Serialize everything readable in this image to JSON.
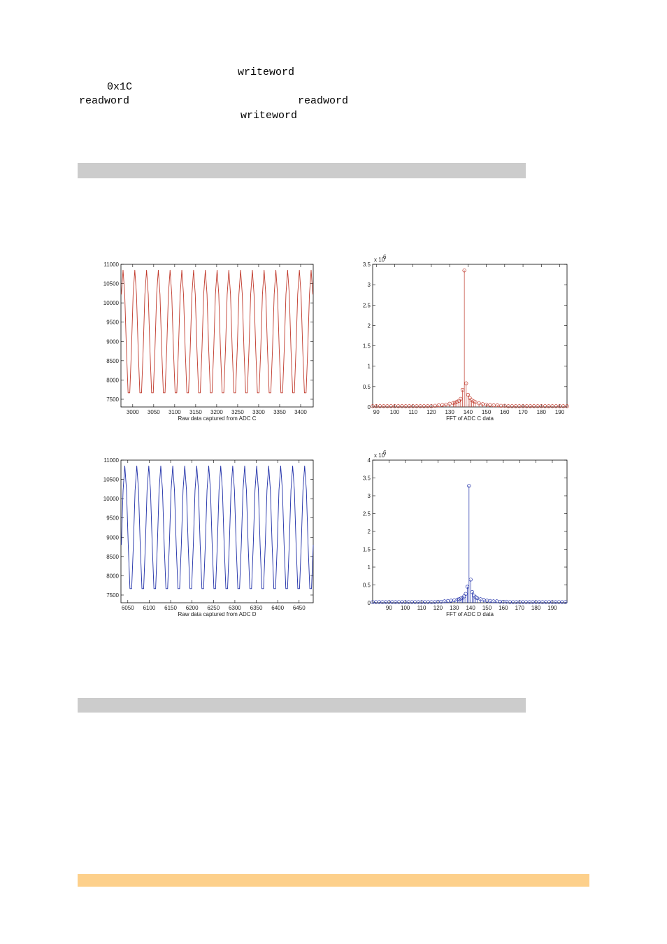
{
  "text": [
    "writeword",
    "0x1C",
    "readword",
    "readword",
    "writeword"
  ],
  "chart_data": [
    {
      "type": "line",
      "xlabel": "Raw data captured from ADC C",
      "color": "#c0392b",
      "xlim": [
        2972,
        3430
      ],
      "xticks": [
        3000,
        3050,
        3100,
        3150,
        3200,
        3250,
        3300,
        3350,
        3400
      ],
      "ylim": [
        7300,
        11000
      ],
      "yticks": [
        7500,
        8000,
        8500,
        9000,
        9500,
        10000,
        10500,
        11000
      ],
      "x": [
        2973,
        2977,
        2981,
        2985,
        2989,
        2993,
        2997,
        3001,
        3005,
        3009,
        3013,
        3017,
        3021,
        3025,
        3029,
        3033,
        3037,
        3041,
        3045,
        3049,
        3053,
        3057,
        3061,
        3065,
        3069,
        3073,
        3077,
        3081,
        3085,
        3089,
        3093,
        3097,
        3101,
        3105,
        3109,
        3113,
        3117,
        3121,
        3125,
        3129,
        3133,
        3137,
        3141,
        3145,
        3149,
        3153,
        3157,
        3161,
        3165,
        3169,
        3173,
        3177,
        3181,
        3185,
        3189,
        3193,
        3197,
        3201,
        3205,
        3209,
        3213,
        3217,
        3221,
        3225,
        3229,
        3233,
        3237,
        3241,
        3245,
        3249,
        3253,
        3257,
        3261,
        3265,
        3269,
        3273,
        3277,
        3281,
        3285,
        3289,
        3293,
        3297,
        3301,
        3305,
        3309,
        3313,
        3317,
        3321,
        3325,
        3329,
        3333,
        3337,
        3341,
        3345,
        3349,
        3353,
        3357,
        3361,
        3365,
        3369,
        3373,
        3377,
        3381,
        3385,
        3389,
        3393,
        3397,
        3401,
        3405,
        3409,
        3413,
        3417,
        3421,
        3425,
        3429
      ],
      "values": [
        10219,
        10850,
        10219,
        8802,
        7666,
        7666,
        8802,
        10219,
        10850,
        10219,
        8802,
        7666,
        7666,
        8802,
        10219,
        10850,
        10219,
        8802,
        7666,
        7666,
        8802,
        10219,
        10850,
        10219,
        8802,
        7666,
        7666,
        8802,
        10219,
        10850,
        10219,
        8802,
        7666,
        7666,
        8802,
        10219,
        10850,
        10219,
        8802,
        7666,
        7666,
        8802,
        10219,
        10850,
        10219,
        8802,
        7666,
        7666,
        8802,
        10219,
        10850,
        10219,
        8802,
        7666,
        7666,
        8802,
        10219,
        10850,
        10219,
        8802,
        7666,
        7666,
        8802,
        10219,
        10850,
        10219,
        8802,
        7666,
        7666,
        8802,
        10219,
        10850,
        10219,
        8802,
        7666,
        7666,
        8802,
        10219,
        10850,
        10219,
        8802,
        7666,
        7666,
        8802,
        10219,
        10850,
        10219,
        8802,
        7666,
        7666,
        8802,
        10219,
        10850,
        10219,
        8802,
        7666,
        7666,
        8802,
        10219,
        10850,
        10219,
        8802,
        7666,
        7666,
        8802,
        10219,
        10850,
        10219,
        8802,
        7666,
        7666,
        8802,
        10219,
        10850,
        10219
      ]
    },
    {
      "type": "stem",
      "xlabel": "FFT of ADC C data",
      "color": "#c0392b",
      "y_scale_label": "x 10",
      "y_scale_exponent": 6,
      "xlim": [
        88,
        194
      ],
      "xticks": [
        90,
        100,
        110,
        120,
        130,
        140,
        150,
        160,
        170,
        180,
        190
      ],
      "ylim": [
        0,
        3.5
      ],
      "yticks": [
        0,
        0.5,
        1,
        1.5,
        2,
        2.5,
        3,
        3.5
      ],
      "x": [
        88,
        90,
        92,
        94,
        96,
        98,
        100,
        102,
        104,
        106,
        108,
        110,
        112,
        114,
        116,
        118,
        120,
        122,
        124,
        126,
        128,
        130,
        132,
        133,
        134,
        135,
        136,
        137,
        138,
        139,
        140,
        141,
        142,
        143,
        144,
        146,
        148,
        150,
        152,
        154,
        156,
        158,
        160,
        162,
        164,
        166,
        168,
        170,
        172,
        174,
        176,
        178,
        180,
        182,
        184,
        186,
        188,
        190,
        192,
        194
      ],
      "values": [
        0.02,
        0.02,
        0.02,
        0.02,
        0.02,
        0.02,
        0.02,
        0.02,
        0.02,
        0.02,
        0.02,
        0.02,
        0.02,
        0.02,
        0.02,
        0.02,
        0.02,
        0.03,
        0.04,
        0.05,
        0.06,
        0.08,
        0.1,
        0.11,
        0.13,
        0.15,
        0.2,
        0.42,
        3.35,
        0.58,
        0.3,
        0.22,
        0.17,
        0.14,
        0.12,
        0.09,
        0.07,
        0.06,
        0.05,
        0.04,
        0.04,
        0.03,
        0.03,
        0.02,
        0.02,
        0.02,
        0.02,
        0.02,
        0.02,
        0.02,
        0.02,
        0.02,
        0.02,
        0.02,
        0.02,
        0.02,
        0.02,
        0.02,
        0.02,
        0.02
      ]
    },
    {
      "type": "line",
      "xlabel": "Raw data captured from ADC D",
      "color": "#1f2fa8",
      "xlim": [
        6034,
        6483
      ],
      "xticks": [
        6050,
        6100,
        6150,
        6200,
        6250,
        6300,
        6350,
        6400,
        6450
      ],
      "ylim": [
        7300,
        11000
      ],
      "yticks": [
        7500,
        8000,
        8500,
        9000,
        9500,
        10000,
        10500,
        11000
      ],
      "x": [
        6035,
        6039,
        6043,
        6047,
        6051,
        6055,
        6059,
        6063,
        6067,
        6071,
        6075,
        6079,
        6083,
        6087,
        6091,
        6095,
        6099,
        6103,
        6107,
        6111,
        6115,
        6119,
        6123,
        6127,
        6131,
        6135,
        6139,
        6143,
        6147,
        6151,
        6155,
        6159,
        6163,
        6167,
        6171,
        6175,
        6179,
        6183,
        6187,
        6191,
        6195,
        6199,
        6203,
        6207,
        6211,
        6215,
        6219,
        6223,
        6227,
        6231,
        6235,
        6239,
        6243,
        6247,
        6251,
        6255,
        6259,
        6263,
        6267,
        6271,
        6275,
        6279,
        6283,
        6287,
        6291,
        6295,
        6299,
        6303,
        6307,
        6311,
        6315,
        6319,
        6323,
        6327,
        6331,
        6335,
        6339,
        6343,
        6347,
        6351,
        6355,
        6359,
        6363,
        6367,
        6371,
        6375,
        6379,
        6383,
        6387,
        6391,
        6395,
        6399,
        6403,
        6407,
        6411,
        6415,
        6419,
        6423,
        6427,
        6431,
        6435,
        6439,
        6443,
        6447,
        6451,
        6455,
        6459,
        6463,
        6467,
        6471,
        6475,
        6479,
        6483
      ],
      "values": [
        8802,
        10219,
        10850,
        10219,
        8802,
        7666,
        7666,
        8802,
        10219,
        10850,
        10219,
        8802,
        7666,
        7666,
        8802,
        10219,
        10850,
        10219,
        8802,
        7666,
        7666,
        8802,
        10219,
        10850,
        10219,
        8802,
        7666,
        7666,
        8802,
        10219,
        10850,
        10219,
        8802,
        7666,
        7666,
        8802,
        10219,
        10850,
        10219,
        8802,
        7666,
        7666,
        8802,
        10219,
        10850,
        10219,
        8802,
        7666,
        7666,
        8802,
        10219,
        10850,
        10219,
        8802,
        7666,
        7666,
        8802,
        10219,
        10850,
        10219,
        8802,
        7666,
        7666,
        8802,
        10219,
        10850,
        10219,
        8802,
        7666,
        7666,
        8802,
        10219,
        10850,
        10219,
        8802,
        7666,
        7666,
        8802,
        10219,
        10850,
        10219,
        8802,
        7666,
        7666,
        8802,
        10219,
        10850,
        10219,
        8802,
        7666,
        7666,
        8802,
        10219,
        10850,
        10219,
        8802,
        7666,
        7666,
        8802,
        10219,
        10850,
        10219,
        8802,
        7666,
        7666,
        8802,
        10219,
        10850,
        10219,
        8802,
        7666,
        7666,
        8802
      ]
    },
    {
      "type": "stem",
      "xlabel": "FFT of ADC D data",
      "color": "#1f2fa8",
      "y_scale_label": "x 10",
      "y_scale_exponent": 6,
      "xlim": [
        80,
        199
      ],
      "xticks": [
        90,
        100,
        110,
        120,
        130,
        140,
        150,
        160,
        170,
        180,
        190
      ],
      "ylim": [
        0,
        4
      ],
      "yticks": [
        0,
        0.5,
        1,
        1.5,
        2,
        2.5,
        3,
        3.5,
        4
      ],
      "x": [
        80,
        82,
        84,
        86,
        88,
        90,
        92,
        94,
        96,
        98,
        100,
        102,
        104,
        106,
        108,
        110,
        112,
        114,
        116,
        118,
        120,
        122,
        124,
        126,
        128,
        130,
        132,
        133,
        134,
        135,
        136,
        137,
        138,
        139,
        140,
        141,
        142,
        143,
        144,
        146,
        148,
        150,
        152,
        154,
        156,
        158,
        160,
        162,
        164,
        166,
        168,
        170,
        172,
        174,
        176,
        178,
        180,
        182,
        184,
        186,
        188,
        190,
        192,
        194,
        196,
        198
      ],
      "values": [
        0.02,
        0.02,
        0.02,
        0.02,
        0.02,
        0.02,
        0.02,
        0.02,
        0.02,
        0.02,
        0.02,
        0.02,
        0.02,
        0.02,
        0.02,
        0.02,
        0.02,
        0.02,
        0.02,
        0.02,
        0.03,
        0.03,
        0.04,
        0.05,
        0.06,
        0.07,
        0.09,
        0.1,
        0.12,
        0.14,
        0.18,
        0.25,
        0.45,
        3.28,
        0.65,
        0.3,
        0.2,
        0.16,
        0.13,
        0.1,
        0.08,
        0.06,
        0.05,
        0.04,
        0.04,
        0.03,
        0.03,
        0.03,
        0.02,
        0.02,
        0.02,
        0.02,
        0.02,
        0.02,
        0.02,
        0.02,
        0.02,
        0.02,
        0.02,
        0.02,
        0.02,
        0.02,
        0.02,
        0.02,
        0.02,
        0.02
      ]
    }
  ]
}
